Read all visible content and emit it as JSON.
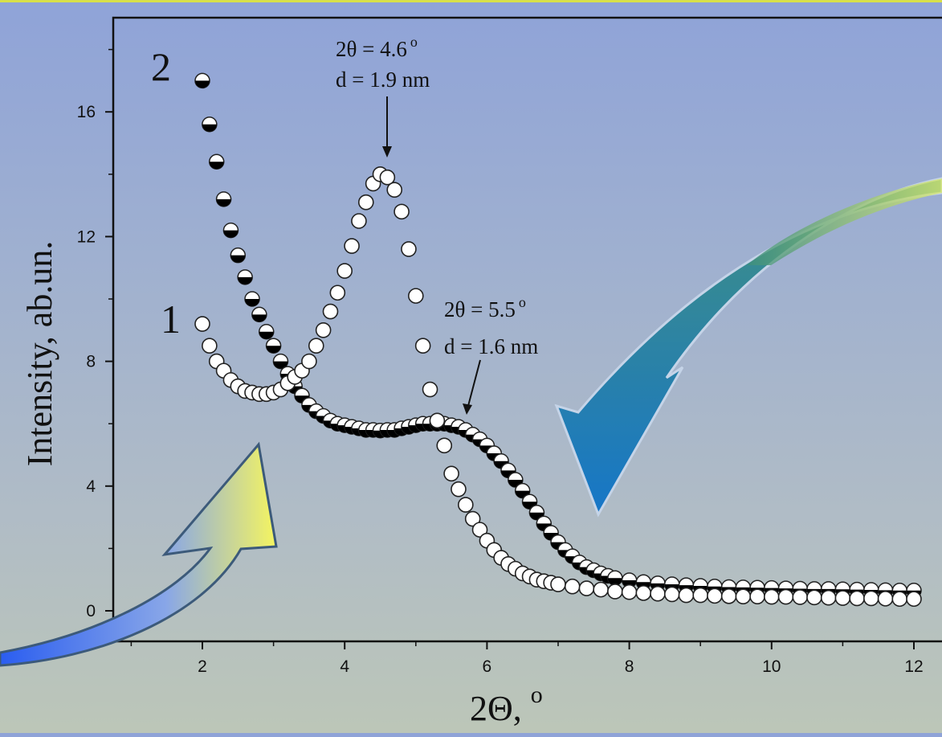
{
  "chart_data": {
    "type": "scatter",
    "xlabel": "2Θ, ",
    "xlabel_unit": "o",
    "ylabel": "Intensity, ab.un.",
    "xlim": [
      0.8,
      12.4
    ],
    "ylim": [
      -1,
      19
    ],
    "x_ticks": [
      2,
      4,
      6,
      8,
      10,
      12
    ],
    "y_ticks": [
      0,
      4,
      8,
      12,
      16
    ],
    "x_tick_labels": [
      "2",
      "4",
      "6",
      "8",
      "10",
      "12"
    ],
    "y_tick_labels": [
      "0",
      "4",
      "8",
      "12",
      "16"
    ],
    "colors": {
      "marker_fill": "#ffffff",
      "marker_half": "#000000",
      "marker_edge": "#222222"
    },
    "series": [
      {
        "name": "1",
        "marker": "open-circle",
        "x": [
          2.0,
          2.1,
          2.2,
          2.3,
          2.4,
          2.5,
          2.6,
          2.7,
          2.8,
          2.9,
          3.0,
          3.1,
          3.2,
          3.3,
          3.4,
          3.5,
          3.6,
          3.7,
          3.8,
          3.9,
          4.0,
          4.1,
          4.2,
          4.3,
          4.4,
          4.5,
          4.6,
          4.7,
          4.8,
          4.9,
          5.0,
          5.1,
          5.2,
          5.3,
          5.4,
          5.5,
          5.6,
          5.7,
          5.8,
          5.9,
          6.0,
          6.1,
          6.2,
          6.3,
          6.4,
          6.5,
          6.6,
          6.7,
          6.8,
          6.9,
          7.0,
          7.2,
          7.4,
          7.6,
          7.8,
          8.0,
          8.2,
          8.4,
          8.6,
          8.8,
          9.0,
          9.2,
          9.4,
          9.6,
          9.8,
          10.0,
          10.2,
          10.4,
          10.6,
          10.8,
          11.0,
          11.2,
          11.4,
          11.6,
          11.8,
          12.0
        ],
        "y": [
          9.2,
          8.5,
          8.0,
          7.7,
          7.4,
          7.2,
          7.05,
          7.0,
          6.95,
          6.95,
          7.0,
          7.1,
          7.3,
          7.5,
          7.7,
          8.0,
          8.5,
          9.0,
          9.6,
          10.2,
          10.9,
          11.7,
          12.5,
          13.1,
          13.7,
          14.0,
          13.9,
          13.5,
          12.8,
          11.6,
          10.1,
          8.5,
          7.1,
          6.1,
          5.3,
          4.4,
          3.9,
          3.4,
          2.95,
          2.6,
          2.25,
          1.95,
          1.7,
          1.5,
          1.35,
          1.2,
          1.1,
          1.0,
          0.95,
          0.9,
          0.85,
          0.78,
          0.72,
          0.68,
          0.62,
          0.6,
          0.57,
          0.55,
          0.53,
          0.5,
          0.5,
          0.48,
          0.47,
          0.46,
          0.46,
          0.45,
          0.45,
          0.44,
          0.43,
          0.42,
          0.41,
          0.4,
          0.4,
          0.39,
          0.38,
          0.38
        ]
      },
      {
        "name": "2",
        "marker": "half-filled-circle",
        "x": [
          2.0,
          2.1,
          2.2,
          2.3,
          2.4,
          2.5,
          2.6,
          2.7,
          2.8,
          2.9,
          3.0,
          3.1,
          3.2,
          3.3,
          3.4,
          3.5,
          3.6,
          3.7,
          3.8,
          3.9,
          4.0,
          4.1,
          4.2,
          4.3,
          4.4,
          4.5,
          4.6,
          4.7,
          4.8,
          4.9,
          5.0,
          5.1,
          5.2,
          5.3,
          5.4,
          5.5,
          5.6,
          5.7,
          5.8,
          5.9,
          6.0,
          6.1,
          6.2,
          6.3,
          6.4,
          6.5,
          6.6,
          6.7,
          6.8,
          6.9,
          7.0,
          7.1,
          7.2,
          7.3,
          7.4,
          7.5,
          7.6,
          7.7,
          7.8,
          8.0,
          8.2,
          8.4,
          8.6,
          8.8,
          9.0,
          9.2,
          9.4,
          9.6,
          9.8,
          10.0,
          10.2,
          10.4,
          10.6,
          10.8,
          11.0,
          11.2,
          11.4,
          11.6,
          11.8,
          12.0
        ],
        "y": [
          17.0,
          15.6,
          14.4,
          13.2,
          12.2,
          11.4,
          10.7,
          10.0,
          9.5,
          8.95,
          8.5,
          8.0,
          7.6,
          7.2,
          6.9,
          6.6,
          6.4,
          6.25,
          6.1,
          6.0,
          5.95,
          5.9,
          5.85,
          5.8,
          5.8,
          5.78,
          5.8,
          5.8,
          5.85,
          5.9,
          5.95,
          6.0,
          6.0,
          6.0,
          6.0,
          5.95,
          5.9,
          5.8,
          5.65,
          5.5,
          5.3,
          5.05,
          4.8,
          4.5,
          4.2,
          3.85,
          3.5,
          3.15,
          2.8,
          2.5,
          2.2,
          1.95,
          1.75,
          1.55,
          1.4,
          1.3,
          1.2,
          1.12,
          1.05,
          0.98,
          0.92,
          0.88,
          0.85,
          0.82,
          0.8,
          0.78,
          0.76,
          0.75,
          0.74,
          0.73,
          0.72,
          0.71,
          0.7,
          0.7,
          0.69,
          0.68,
          0.67,
          0.66,
          0.65,
          0.65
        ]
      }
    ],
    "series_labels": [
      "1",
      "2"
    ],
    "annotations": [
      {
        "x": 4.6,
        "y": 14.0,
        "line1": "2θ = 4.6",
        "line1_sup": "o",
        "line2": "d = 1.9 nm"
      },
      {
        "x": 5.6,
        "y": 6.1,
        "line1": "2θ = 5.5",
        "line1_sup": "o",
        "line2": "d = 1.6 nm"
      }
    ]
  }
}
